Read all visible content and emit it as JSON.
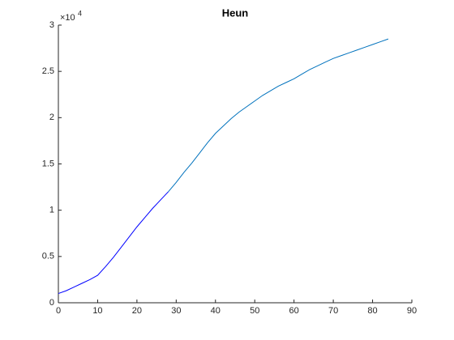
{
  "chart_data": {
    "type": "line",
    "title": "Heun",
    "x": [
      0,
      2,
      4,
      6,
      8,
      10,
      12,
      14,
      16,
      18,
      20,
      22,
      24,
      26,
      28,
      30,
      32,
      34,
      36,
      38,
      40,
      42,
      44,
      46,
      48,
      50,
      52,
      54,
      56,
      58,
      60,
      62,
      64,
      66,
      68,
      70,
      72,
      74,
      76,
      78,
      80,
      82,
      84
    ],
    "series": [
      {
        "color": "#0000ff",
        "values": [
          1000,
          1300,
          1700,
          2100,
          2500,
          2970,
          3900,
          4900,
          6000,
          7100,
          8200,
          9200,
          10200,
          11100,
          12000,
          null,
          null,
          null,
          null,
          null,
          null,
          null,
          null,
          null,
          null,
          null,
          null,
          null,
          null,
          null,
          null,
          null,
          null,
          null,
          null,
          null,
          null,
          null,
          null,
          null,
          null,
          null,
          null
        ]
      },
      {
        "color": "#0072bd",
        "values": [
          null,
          null,
          null,
          null,
          null,
          null,
          null,
          null,
          null,
          null,
          null,
          null,
          null,
          null,
          12000,
          13000,
          14100,
          15100,
          16200,
          17300,
          18300,
          19100,
          19900,
          20600,
          21200,
          21800,
          22400,
          22900,
          23400,
          23800,
          24200,
          24700,
          25200,
          25600,
          26000,
          26400,
          26700,
          27000,
          27300,
          27600,
          27900,
          28200,
          28500
        ]
      }
    ],
    "xlim": [
      0,
      90
    ],
    "xticks": [
      0,
      10,
      20,
      30,
      40,
      50,
      60,
      70,
      80,
      90
    ],
    "ylim": [
      0,
      30000
    ],
    "yticks": [
      {
        "value": 0,
        "label": "0"
      },
      {
        "value": 5000,
        "label": "0.5"
      },
      {
        "value": 10000,
        "label": "1"
      },
      {
        "value": 15000,
        "label": "1.5"
      },
      {
        "value": 20000,
        "label": "2"
      },
      {
        "value": 25000,
        "label": "2.5"
      },
      {
        "value": 30000,
        "label": "3"
      }
    ],
    "y_exponent_base": "×10",
    "y_exponent": "4",
    "grid": false
  }
}
